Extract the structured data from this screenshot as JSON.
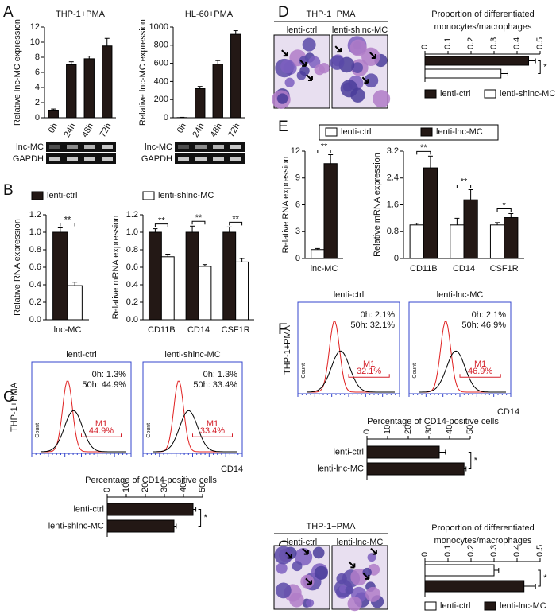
{
  "panel_labels": [
    "A",
    "B",
    "C",
    "D",
    "E",
    "F",
    "G"
  ],
  "chart_data": [
    {
      "type": "bar",
      "title": "THP-1+PMA",
      "y_label": "Relative lnc-MC expression",
      "categories": [
        "0h",
        "24h",
        "48h",
        "72h"
      ],
      "values": [
        1,
        7,
        7.8,
        9.5
      ],
      "errors": [
        0.15,
        0.4,
        0.35,
        1.0
      ],
      "color": "#231815",
      "ylim": [
        0,
        12
      ],
      "yticks": [
        0,
        2,
        4,
        6,
        8,
        10,
        12
      ]
    },
    {
      "type": "bar",
      "title": "HL-60+PMA",
      "y_label": "Relative lnc-MC expression",
      "categories": [
        "0h",
        "24h",
        "48h",
        "72h"
      ],
      "values": [
        2,
        320,
        590,
        920
      ],
      "errors": [
        3,
        25,
        40,
        40
      ],
      "color": "#231815",
      "ylim": [
        0,
        1000
      ],
      "yticks": [
        0,
        200,
        400,
        600,
        800,
        1000
      ]
    },
    {
      "type": "bar",
      "y_label": "Relative RNA expression",
      "categories": [
        "lnc-MC"
      ],
      "series": [
        {
          "name": "lenti-ctrl",
          "color": "#231815",
          "values": [
            1.0
          ],
          "errors": [
            0.05
          ]
        },
        {
          "name": "lenti-shlnc-MC",
          "color": "#ffffff",
          "values": [
            0.39
          ],
          "errors": [
            0.04
          ]
        }
      ],
      "significance": [
        "**"
      ],
      "ylim": [
        0,
        1.2
      ],
      "yticks": [
        {
          "value": 0,
          "label": "0.0"
        },
        0.2,
        0.4,
        0.6,
        0.8,
        {
          "value": 1,
          "label": "1.0"
        },
        1.2
      ]
    },
    {
      "type": "bar",
      "y_label": "Relative mRNA expression",
      "categories": [
        "CD11B",
        "CD14",
        "CSF1R"
      ],
      "series": [
        {
          "color": "#231815",
          "values": [
            1.0,
            1.0,
            1.0
          ],
          "errors": [
            0.04,
            0.07,
            0.06
          ]
        },
        {
          "color": "#ffffff",
          "values": [
            0.72,
            0.61,
            0.66
          ],
          "errors": [
            0.03,
            0.02,
            0.04
          ]
        }
      ],
      "significance": [
        "**",
        "**",
        "**"
      ],
      "ylim": [
        0,
        1.2
      ],
      "yticks": [
        {
          "value": 0,
          "label": "0.0"
        },
        0.2,
        0.4,
        0.6,
        0.8,
        {
          "value": 1,
          "label": "1.0"
        },
        1.2
      ]
    },
    {
      "type": "hbar",
      "title": "Percentage of CD14-positive cells",
      "categories": [
        "lenti-ctrl",
        "lenti-shlnc-MC"
      ],
      "values": [
        45,
        35
      ],
      "errors": [
        1.5,
        1.2
      ],
      "color": "#231815",
      "significance": "*",
      "xlim": [
        0,
        50
      ],
      "xticks": [
        0,
        10,
        20,
        30,
        40,
        50
      ]
    },
    {
      "type": "hbar",
      "title": [
        "Proportion of differentiated",
        "monocytes/macrophages"
      ],
      "series": [
        {
          "name": "lenti-ctrl",
          "color": "#231815",
          "values": [
            0.45
          ],
          "errors": [
            0.03
          ]
        },
        {
          "name": "lenti-shlnc-MC",
          "color": "#ffffff",
          "values": [
            0.33
          ],
          "errors": [
            0.03
          ]
        }
      ],
      "significance": "*",
      "xlim": [
        0,
        0.5
      ],
      "xticks": [
        0,
        0.1,
        0.2,
        0.3,
        0.4,
        0.5
      ]
    },
    {
      "type": "bar",
      "y_label": "Relative RNA expression",
      "categories": [
        "lnc-MC"
      ],
      "series": [
        {
          "name": "lenti-ctrl",
          "color": "#ffffff",
          "values": [
            1.0
          ],
          "errors": [
            0.12
          ]
        },
        {
          "name": "lenti-lnc-MC",
          "color": "#231815",
          "values": [
            10.6
          ],
          "errors": [
            1.0
          ]
        }
      ],
      "significance": [
        "**"
      ],
      "ylim": [
        0,
        12
      ],
      "yticks": [
        0,
        3,
        6,
        9,
        12
      ]
    },
    {
      "type": "bar",
      "y_label": "Relative mRNA expression",
      "categories": [
        "CD11B",
        "CD14",
        "CSF1R"
      ],
      "series": [
        {
          "color": "#ffffff",
          "values": [
            1.0,
            1.0,
            1.0
          ],
          "errors": [
            0.05,
            0.2,
            0.07
          ]
        },
        {
          "color": "#231815",
          "values": [
            2.7,
            1.75,
            1.22
          ],
          "errors": [
            0.35,
            0.3,
            0.12
          ]
        }
      ],
      "significance": [
        "**",
        "**",
        "*"
      ],
      "ylim": [
        0,
        3.2
      ],
      "yticks": [
        0,
        0.8,
        1.6,
        2.4,
        3.2
      ]
    },
    {
      "type": "hbar",
      "title": "Percentage of CD14-positive cells",
      "categories": [
        "lenti-ctrl",
        "lenti-lnc-MC"
      ],
      "values": [
        35,
        47
      ],
      "errors": [
        3,
        1
      ],
      "color": "#231815",
      "significance": "*",
      "xlim": [
        0,
        50
      ],
      "xticks": [
        0,
        10,
        20,
        30,
        40,
        50
      ]
    },
    {
      "type": "hbar",
      "title": [
        "Proportion of differentiated",
        "monocytes/macrophages"
      ],
      "series": [
        {
          "name": "lenti-ctrl",
          "color": "#ffffff",
          "values": [
            0.3
          ],
          "errors": [
            0.02
          ]
        },
        {
          "name": "lenti-lnc-MC",
          "color": "#231815",
          "values": [
            0.43
          ],
          "errors": [
            0.05
          ]
        }
      ],
      "significance": "*",
      "xlim": [
        0,
        0.5
      ],
      "xticks": [
        0,
        0.1,
        0.2,
        0.3,
        0.4,
        0.5
      ]
    }
  ],
  "gels": [
    {
      "bands": [
        "lnc-MC",
        "GAPDH"
      ]
    },
    {
      "bands": [
        "lnc-MC",
        "GAPDH"
      ]
    }
  ],
  "flow_cytometry": [
    {
      "y_label": "THP-1+PMA",
      "x_label": "CD14",
      "count_label": "Count",
      "plots": [
        {
          "title": "lenti-ctrl",
          "stats": [
            "0h: 1.3%",
            "50h: 44.9%"
          ],
          "gate": "M1",
          "gate_value": "44.9%"
        },
        {
          "title": "lenti-shlnc-MC",
          "stats": [
            "0h: 1.3%",
            "50h: 33.4%"
          ],
          "gate": "M1",
          "gate_value": "33.4%"
        }
      ]
    },
    {
      "y_label": "THP-1+PMA",
      "x_label": "CD14",
      "count_label": "Count",
      "plots": [
        {
          "title": "lenti-ctrl",
          "stats": [
            "0h: 2.1%",
            "50h: 32.1%"
          ],
          "gate": "M1",
          "gate_value": "32.1%"
        },
        {
          "title": "lenti-lnc-MC",
          "stats": [
            "0h: 2.1%",
            "50h: 46.9%"
          ],
          "gate": "M1",
          "gate_value": "46.9%"
        }
      ]
    }
  ],
  "micrographs": [
    {
      "title": "THP-1+PMA",
      "images": [
        "lenti-ctrl",
        "lenti-shlnc-MC"
      ]
    },
    {
      "title": "THP-1+PMA",
      "images": [
        "lenti-ctrl",
        "lenti-lnc-MC"
      ]
    }
  ]
}
